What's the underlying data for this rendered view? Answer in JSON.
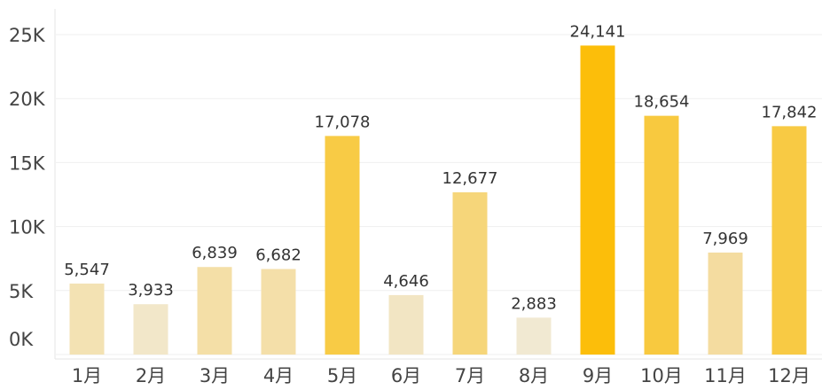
{
  "chart_data": {
    "type": "bar",
    "categories": [
      "1月",
      "2月",
      "3月",
      "4月",
      "5月",
      "6月",
      "7月",
      "8月",
      "9月",
      "10月",
      "11月",
      "12月"
    ],
    "values": [
      5547,
      3933,
      6839,
      6682,
      17078,
      4646,
      12677,
      2883,
      24141,
      18654,
      7969,
      17842
    ],
    "value_labels": [
      "5,547",
      "3,933",
      "6,839",
      "6,682",
      "17,078",
      "4,646",
      "12,677",
      "2,883",
      "24,141",
      "18,654",
      "7,969",
      "17,842"
    ],
    "colors": [
      "#f3e2b3",
      "#f2e7c9",
      "#f4dfa7",
      "#f4dfa9",
      "#f8cb45",
      "#f2e5c3",
      "#f6d67a",
      "#f1e9d2",
      "#fcbe0a",
      "#f8c93f",
      "#f4dca0",
      "#f8ca44"
    ],
    "ylim": [
      0,
      25000
    ],
    "yticks": [
      {
        "value": 0,
        "label": "0K"
      },
      {
        "value": 5000,
        "label": "5K"
      },
      {
        "value": 10000,
        "label": "10K"
      },
      {
        "value": 15000,
        "label": "15K"
      },
      {
        "value": 20000,
        "label": "20K"
      },
      {
        "value": 25000,
        "label": "25K"
      }
    ],
    "grid": true
  }
}
